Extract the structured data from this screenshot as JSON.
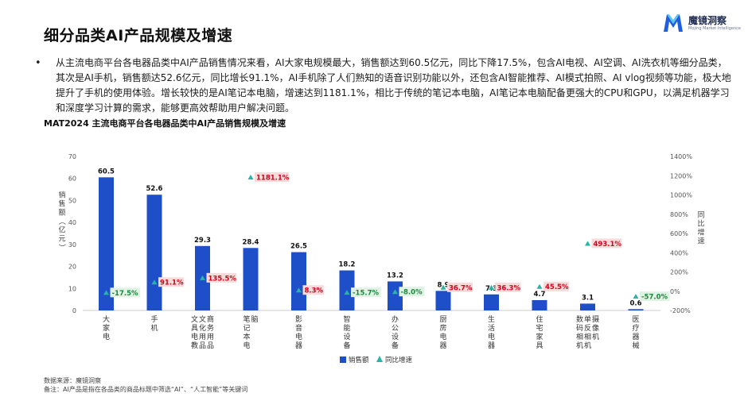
{
  "page": {
    "title": "细分品类AI产品规模及增速",
    "logo": {
      "name": "魔镜洞察",
      "sub": "Mojing Market Intelligence",
      "color": "#1e5fe0"
    },
    "paragraph": "从主流电商平台各电器品类中AI产品销售情况来看，AI大家电规模最大，销售额达到60.5亿元，同比下降17.5%，包含AI电视、AI空调、AI洗衣机等细分品类，其次是AI手机，销售额达52.6亿元，同比增长91.1%，AI手机除了人们熟知的语音识别功能以外，还包含AI智能推荐、AI模式拍照、AI vlog视频等功能，极大地提升了手机的使用体验。增长较快的是AI笔记本电脑，增速达到1181.1%，相比于传统的笔记本电脑，AI笔记本电脑配备更强大的CPU和GPU，以满足机器学习和深度学习计算的需求，能够更高效帮助用户解决问题。",
    "chart_title": "MAT2024 主流电商平台各电器品类中AI产品销售规模及增速",
    "source": "数据来源：魔镜洞察",
    "note": "备注：AI产品是指在各品类的商品标题中筛选“AI”、“人工智能”等关键词"
  },
  "chart_data": {
    "type": "bar",
    "categories": [
      "大家电",
      "手机",
      "文具电教文化用品商务用品",
      "笔记本电脑",
      "影音电器",
      "智能设备",
      "办公设备",
      "厨房电器",
      "生活电器",
      "住宅家具",
      "数码相机单反相机摄像机",
      "医疗器械"
    ],
    "series": [
      {
        "name": "销售额",
        "type": "bar",
        "axis": "left",
        "color": "#1f4fc8",
        "values": [
          60.5,
          52.6,
          29.3,
          28.4,
          26.5,
          18.2,
          13.2,
          8.9,
          7.3,
          4.7,
          3.1,
          0.6
        ]
      },
      {
        "name": "同比增速",
        "type": "marker",
        "axis": "right",
        "marker_color": "#2ab3a6",
        "values": [
          -17.5,
          91.1,
          135.5,
          1181.1,
          8.3,
          -15.7,
          -8.0,
          36.7,
          36.3,
          45.5,
          493.1,
          -57.0
        ],
        "labels": [
          "-17.5%",
          "91.1%",
          "135.5%",
          "1181.1%",
          "8.3%",
          "-15.7%",
          "-8.0%",
          "36.7%",
          "36.3%",
          "45.5%",
          "493.1%",
          "-57.0%"
        ]
      }
    ],
    "bar_labels": [
      "60.5",
      "52.6",
      "29.3",
      "28.4",
      "26.5",
      "18.2",
      "13.2",
      "8.9",
      "7.3",
      "4.7",
      "3.1",
      "0.6"
    ],
    "ylabel": "销售额（亿元）",
    "y2label": "同比增速",
    "ylim": [
      0,
      70
    ],
    "yticks": [
      "0",
      "10",
      "20",
      "30",
      "40",
      "50",
      "60",
      "70"
    ],
    "y2lim": [
      -200,
      1400
    ],
    "y2ticks": [
      "-200%",
      "0%",
      "200%",
      "400%",
      "600%",
      "800%",
      "1000%",
      "1200%",
      "1400%"
    ],
    "legend": {
      "position": "bottom",
      "items": [
        "销售额",
        "同比增速"
      ]
    },
    "label_colors": {
      "positive_text": "#d0021b",
      "positive_bg": "#f7dada",
      "negative_text": "#1a8a3c",
      "negative_bg": "#dff2e3"
    },
    "grid": false
  }
}
